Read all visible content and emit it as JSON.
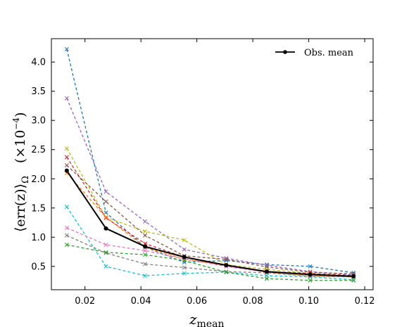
{
  "chart_data": {
    "type": "line",
    "xlabel": "z",
    "xlabel_sub": "mean",
    "ylabel": "⟨err(z)⟩",
    "ylabel_sub": "Ω",
    "ylabel_scale": "(×10",
    "ylabel_exp": "−4",
    "ylabel_close": ")",
    "xlim": [
      0.008,
      0.123
    ],
    "ylim": [
      0.1,
      4.4
    ],
    "xticks": [
      0.02,
      0.04,
      0.06,
      0.08,
      0.1,
      0.12
    ],
    "xtick_labels": [
      "0.02",
      "0.04",
      "0.06",
      "0.08",
      "0.10",
      "0.12"
    ],
    "yticks": [
      0.5,
      1.0,
      1.5,
      2.0,
      2.5,
      3.0,
      3.5,
      4.0
    ],
    "ytick_labels": [
      "0.5",
      "1.0",
      "1.5",
      "2.0",
      "2.5",
      "3.0",
      "3.5",
      "4.0"
    ],
    "legend": {
      "position": "top-right",
      "label": "Obs. mean"
    },
    "x": [
      0.0135,
      0.0275,
      0.0415,
      0.0555,
      0.0705,
      0.085,
      0.1005,
      0.116
    ],
    "mean_series": {
      "name": "Obs. mean",
      "color": "#000000",
      "values": [
        2.14,
        1.15,
        0.84,
        0.66,
        0.52,
        0.41,
        0.36,
        0.33
      ]
    },
    "series": [
      {
        "color": "#1f77b4",
        "values": [
          4.22,
          1.42,
          0.83,
          0.57,
          0.6,
          0.53,
          0.5,
          0.39
        ]
      },
      {
        "color": "#9467bd",
        "values": [
          3.38,
          1.78,
          1.27,
          0.79,
          0.64,
          0.52,
          0.41,
          0.35
        ]
      },
      {
        "color": "#bcbd22",
        "values": [
          2.52,
          1.34,
          1.1,
          0.95,
          0.53,
          0.45,
          0.38,
          0.33
        ]
      },
      {
        "color": "#d62728",
        "values": [
          2.37,
          1.33,
          0.89,
          0.66,
          0.5,
          0.41,
          0.38,
          0.34
        ]
      },
      {
        "color": "#8c564b",
        "values": [
          2.23,
          1.61,
          1.03,
          0.68,
          0.62,
          0.49,
          0.4,
          0.37
        ]
      },
      {
        "color": "#ff7f0e",
        "values": [
          2.1,
          1.34,
          0.83,
          0.62,
          0.52,
          0.4,
          0.34,
          0.32
        ]
      },
      {
        "color": "#17becf",
        "values": [
          1.52,
          0.5,
          0.34,
          0.38,
          0.4,
          0.34,
          0.32,
          0.27
        ]
      },
      {
        "color": "#e377c2",
        "values": [
          1.16,
          0.87,
          0.77,
          0.63,
          0.5,
          0.4,
          0.36,
          0.33
        ]
      },
      {
        "color": "#7f7f7f",
        "values": [
          1.03,
          0.73,
          0.54,
          0.48,
          0.41,
          0.39,
          0.33,
          0.32
        ]
      },
      {
        "color": "#2ca02c",
        "values": [
          0.87,
          0.74,
          0.7,
          0.6,
          0.4,
          0.29,
          0.26,
          0.26
        ]
      }
    ]
  }
}
